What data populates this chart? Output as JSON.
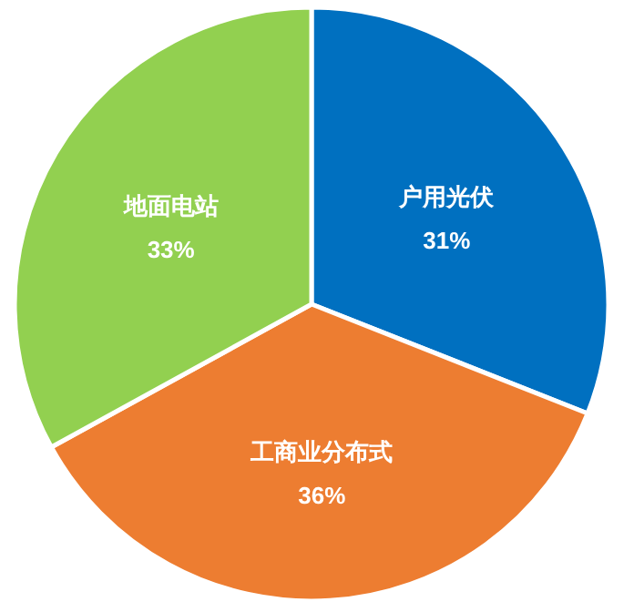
{
  "chart_data": {
    "type": "pie",
    "categories": [
      "户用光伏",
      "工商业分布式",
      "地面电站"
    ],
    "values": [
      31,
      36,
      33
    ],
    "value_labels": [
      "31%",
      "36%",
      "33%"
    ],
    "colors": [
      "#0070c0",
      "#ed7d31",
      "#92d050"
    ]
  }
}
